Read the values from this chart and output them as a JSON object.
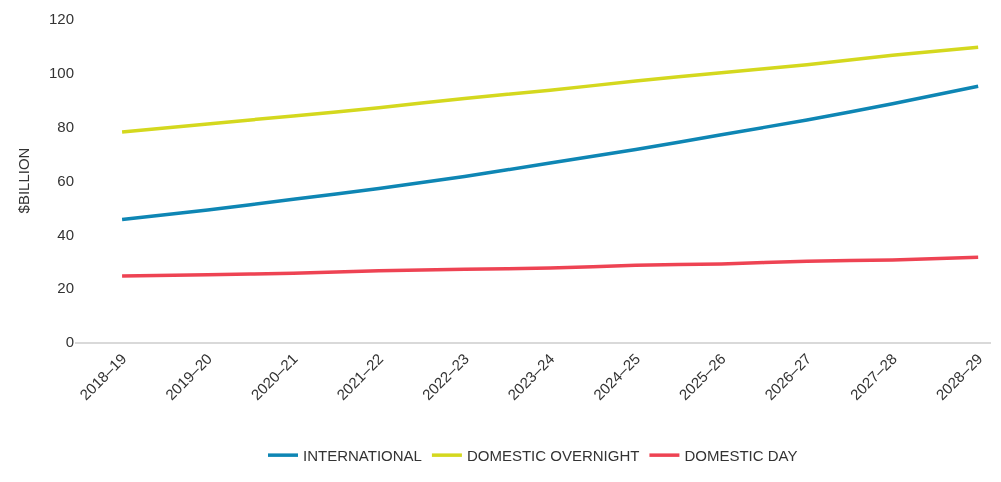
{
  "chart_data": {
    "type": "line",
    "ylabel": "$BILLION",
    "categories": [
      "2018–19",
      "2019–20",
      "2020–21",
      "2021–22",
      "2022–23",
      "2023–24",
      "2024–25",
      "2025–26",
      "2026–27",
      "2027–28",
      "2028–29"
    ],
    "series": [
      {
        "name": "INTERNATIONAL",
        "color": "#0e86b4",
        "values": [
          45.5,
          49,
          53,
          57,
          61.5,
          66.5,
          71.5,
          77,
          82.5,
          88.5,
          95
        ]
      },
      {
        "name": "DOMESTIC OVERNIGHT",
        "color": "#d4d81e",
        "values": [
          78,
          81,
          84,
          87,
          90.5,
          93.5,
          97,
          100,
          103,
          106.5,
          109.5
        ]
      },
      {
        "name": "DOMESTIC DAY",
        "color": "#ee4353",
        "values": [
          24.5,
          25,
          25.5,
          26.5,
          27,
          27.5,
          28.5,
          29,
          30,
          30.5,
          31.5
        ]
      }
    ],
    "ylim": [
      0,
      120
    ],
    "yticks": [
      0,
      20,
      40,
      60,
      80,
      100,
      120
    ],
    "legend": "bottom",
    "marker": "none",
    "line_style": "solid"
  }
}
